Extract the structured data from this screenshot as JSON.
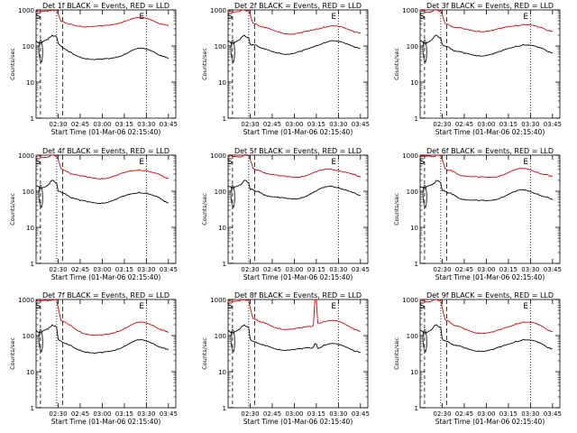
{
  "colors": {
    "events": "#000000",
    "lld": "#dd0000",
    "background": "#ffffff",
    "axis": "#000000"
  },
  "shared": {
    "ylabel": "Counts/sec",
    "xlabel": "Start Time (01-Mar-06 02:15:40)",
    "x_ticks": [
      "02:30",
      "02:45",
      "03:00",
      "03:15",
      "03:30",
      "03:45"
    ],
    "y_ticks": [
      "1",
      "10",
      "100",
      "1000"
    ],
    "marker_s": "S",
    "marker_e": "E"
  },
  "chart_data": [
    {
      "type": "line",
      "title": "Det 1f BLACK = Events, RED = LLD",
      "yscale": "log",
      "ylim": [
        1,
        1000
      ],
      "grid": false,
      "series": [
        {
          "color": "red",
          "x": [
            0,
            3,
            8,
            11,
            14,
            15,
            17,
            18,
            20,
            22,
            25,
            30,
            35,
            40,
            45,
            50,
            55,
            60,
            65,
            70,
            75,
            80,
            85,
            88,
            90
          ],
          "y": [
            1000,
            900,
            900,
            1000,
            950,
            800,
            480,
            480,
            430,
            400,
            380,
            360,
            350,
            350,
            350,
            370,
            420,
            500,
            570,
            600,
            570,
            500,
            420,
            380,
            360
          ]
        },
        {
          "color": "black",
          "x": [
            0,
            3,
            8,
            11,
            14,
            15,
            17,
            18,
            20,
            22,
            25,
            30,
            35,
            40,
            45,
            50,
            55,
            60,
            65,
            70,
            75,
            80,
            85,
            88,
            90
          ],
          "y": [
            140,
            120,
            150,
            200,
            180,
            120,
            100,
            90,
            80,
            70,
            60,
            50,
            45,
            42,
            42,
            44,
            50,
            60,
            75,
            85,
            80,
            70,
            55,
            48,
            45
          ]
        }
      ]
    },
    {
      "type": "line",
      "title": "Det 2f BLACK = Events, RED = LLD",
      "yscale": "log",
      "ylim": [
        1,
        1000
      ],
      "grid": false,
      "series": [
        {
          "color": "red",
          "x": [
            0,
            3,
            8,
            11,
            14,
            15,
            17,
            18,
            20,
            22,
            25,
            30,
            35,
            40,
            45,
            50,
            55,
            60,
            65,
            70,
            75,
            80,
            85,
            88,
            90
          ],
          "y": [
            1000,
            900,
            900,
            1000,
            950,
            750,
            430,
            400,
            380,
            350,
            320,
            280,
            250,
            220,
            210,
            230,
            260,
            300,
            340,
            360,
            340,
            300,
            260,
            240,
            230
          ]
        },
        {
          "color": "black",
          "x": [
            0,
            3,
            8,
            11,
            14,
            15,
            17,
            18,
            20,
            22,
            25,
            30,
            35,
            40,
            45,
            50,
            55,
            60,
            65,
            70,
            75,
            80,
            85,
            88,
            90
          ],
          "y": [
            140,
            120,
            150,
            200,
            170,
            110,
            110,
            105,
            100,
            90,
            80,
            70,
            65,
            60,
            62,
            70,
            85,
            105,
            125,
            140,
            130,
            115,
            100,
            90,
            85
          ]
        }
      ]
    },
    {
      "type": "line",
      "title": "Det 3f BLACK = Events, RED = LLD",
      "yscale": "log",
      "ylim": [
        1,
        1000
      ],
      "grid": false,
      "series": [
        {
          "color": "red",
          "x": [
            0,
            3,
            8,
            11,
            14,
            15,
            17,
            18,
            20,
            22,
            25,
            30,
            35,
            40,
            45,
            50,
            55,
            60,
            65,
            70,
            75,
            80,
            85,
            88,
            90
          ],
          "y": [
            1000,
            900,
            900,
            1000,
            950,
            750,
            420,
            400,
            380,
            350,
            320,
            290,
            270,
            260,
            260,
            270,
            300,
            340,
            380,
            400,
            380,
            330,
            290,
            270,
            260
          ]
        },
        {
          "color": "black",
          "x": [
            0,
            3,
            8,
            11,
            14,
            15,
            17,
            18,
            20,
            22,
            25,
            30,
            35,
            40,
            45,
            50,
            55,
            60,
            65,
            70,
            75,
            80,
            85,
            88,
            90
          ],
          "y": [
            140,
            120,
            150,
            200,
            170,
            110,
            100,
            95,
            90,
            80,
            70,
            62,
            58,
            55,
            56,
            60,
            70,
            85,
            100,
            110,
            105,
            90,
            78,
            70,
            65
          ]
        }
      ]
    },
    {
      "type": "line",
      "title": "Det 4f BLACK = Events, RED = LLD",
      "yscale": "log",
      "ylim": [
        1,
        1000
      ],
      "grid": false,
      "series": [
        {
          "color": "red",
          "x": [
            0,
            3,
            8,
            11,
            14,
            15,
            17,
            18,
            20,
            22,
            25,
            30,
            35,
            40,
            45,
            50,
            55,
            60,
            65,
            70,
            75,
            80,
            85,
            88,
            90
          ],
          "y": [
            1000,
            900,
            900,
            1000,
            950,
            750,
            420,
            400,
            370,
            340,
            300,
            260,
            240,
            230,
            230,
            240,
            270,
            320,
            370,
            400,
            380,
            320,
            270,
            240,
            230
          ]
        },
        {
          "color": "black",
          "x": [
            0,
            3,
            8,
            11,
            14,
            15,
            17,
            18,
            20,
            22,
            25,
            30,
            35,
            40,
            45,
            50,
            55,
            60,
            65,
            70,
            75,
            80,
            85,
            88,
            90
          ],
          "y": [
            140,
            120,
            150,
            200,
            170,
            100,
            95,
            90,
            85,
            75,
            65,
            55,
            50,
            48,
            48,
            52,
            60,
            72,
            85,
            95,
            90,
            75,
            60,
            52,
            48
          ]
        }
      ]
    },
    {
      "type": "line",
      "title": "Det 5f BLACK = Events, RED = LLD",
      "yscale": "log",
      "ylim": [
        1,
        1000
      ],
      "grid": false,
      "series": [
        {
          "color": "red",
          "x": [
            0,
            3,
            8,
            11,
            14,
            15,
            17,
            18,
            20,
            22,
            25,
            30,
            35,
            40,
            45,
            50,
            55,
            60,
            65,
            70,
            75,
            80,
            85,
            88,
            90
          ],
          "y": [
            1000,
            900,
            900,
            1000,
            950,
            750,
            430,
            410,
            390,
            360,
            330,
            290,
            260,
            250,
            250,
            260,
            290,
            340,
            390,
            410,
            390,
            340,
            290,
            260,
            250
          ]
        },
        {
          "color": "black",
          "x": [
            0,
            3,
            8,
            11,
            14,
            15,
            17,
            18,
            20,
            22,
            25,
            30,
            35,
            40,
            45,
            50,
            55,
            60,
            65,
            70,
            75,
            80,
            85,
            88,
            90
          ],
          "y": [
            140,
            120,
            150,
            200,
            170,
            110,
            110,
            105,
            100,
            90,
            80,
            70,
            65,
            62,
            62,
            68,
            80,
            100,
            125,
            140,
            130,
            110,
            90,
            80,
            75
          ]
        }
      ]
    },
    {
      "type": "line",
      "title": "Det 6f BLACK = Events, RED = LLD",
      "yscale": "log",
      "ylim": [
        1,
        1000
      ],
      "grid": false,
      "series": [
        {
          "color": "red",
          "x": [
            0,
            3,
            8,
            11,
            14,
            15,
            17,
            18,
            20,
            22,
            25,
            30,
            35,
            40,
            45,
            50,
            55,
            60,
            65,
            70,
            75,
            80,
            85,
            88,
            90
          ],
          "y": [
            1000,
            900,
            900,
            1000,
            950,
            750,
            420,
            400,
            380,
            350,
            310,
            270,
            250,
            240,
            240,
            250,
            280,
            330,
            390,
            420,
            400,
            340,
            290,
            260,
            250
          ]
        },
        {
          "color": "black",
          "x": [
            0,
            3,
            8,
            11,
            14,
            15,
            17,
            18,
            20,
            22,
            25,
            30,
            35,
            40,
            45,
            50,
            55,
            60,
            65,
            70,
            75,
            80,
            85,
            88,
            90
          ],
          "y": [
            140,
            120,
            150,
            200,
            170,
            105,
            100,
            95,
            90,
            80,
            70,
            60,
            56,
            54,
            54,
            58,
            68,
            82,
            98,
            108,
            100,
            85,
            70,
            62,
            58
          ]
        }
      ]
    },
    {
      "type": "line",
      "title": "Det 7f BLACK = Events, RED = LLD",
      "yscale": "log",
      "ylim": [
        1,
        1000
      ],
      "grid": false,
      "series": [
        {
          "color": "red",
          "x": [
            0,
            3,
            8,
            11,
            14,
            15,
            17,
            18,
            20,
            22,
            25,
            30,
            35,
            40,
            45,
            50,
            55,
            60,
            65,
            70,
            75,
            80,
            85,
            88,
            90
          ],
          "y": [
            1000,
            900,
            900,
            1000,
            950,
            600,
            260,
            250,
            230,
            200,
            170,
            130,
            110,
            100,
            100,
            110,
            130,
            160,
            200,
            230,
            220,
            190,
            150,
            130,
            120
          ]
        },
        {
          "color": "black",
          "x": [
            0,
            3,
            8,
            11,
            14,
            15,
            17,
            18,
            20,
            22,
            25,
            30,
            35,
            40,
            45,
            50,
            55,
            60,
            65,
            70,
            75,
            80,
            85,
            88,
            90
          ],
          "y": [
            140,
            120,
            150,
            200,
            170,
            80,
            70,
            65,
            60,
            55,
            48,
            40,
            35,
            32,
            33,
            36,
            42,
            52,
            65,
            75,
            70,
            60,
            48,
            42,
            40
          ]
        }
      ]
    },
    {
      "type": "line",
      "title": "Det 8f BLACK = Events, RED = LLD",
      "yscale": "log",
      "ylim": [
        1,
        1000
      ],
      "grid": false,
      "series": [
        {
          "color": "red",
          "x": [
            0,
            3,
            8,
            11,
            14,
            15,
            17,
            18,
            20,
            22,
            25,
            30,
            35,
            40,
            45,
            50,
            55,
            58,
            59,
            60,
            61,
            65,
            70,
            75,
            80,
            85,
            88,
            90
          ],
          "y": [
            1000,
            900,
            900,
            1000,
            950,
            600,
            300,
            280,
            260,
            240,
            220,
            180,
            160,
            150,
            150,
            160,
            180,
            190,
            1000,
            1000,
            220,
            250,
            260,
            240,
            200,
            160,
            140,
            130
          ]
        },
        {
          "color": "black",
          "x": [
            0,
            3,
            8,
            11,
            14,
            15,
            17,
            18,
            20,
            22,
            25,
            30,
            35,
            40,
            45,
            50,
            55,
            58,
            59,
            60,
            61,
            65,
            70,
            75,
            80,
            85,
            88,
            90
          ],
          "y": [
            140,
            120,
            150,
            200,
            170,
            80,
            70,
            66,
            62,
            58,
            52,
            46,
            42,
            40,
            40,
            42,
            46,
            48,
            60,
            58,
            44,
            55,
            60,
            55,
            48,
            40,
            36,
            34
          ]
        }
      ]
    },
    {
      "type": "line",
      "title": "Det 9f BLACK = Events, RED = LLD",
      "yscale": "log",
      "ylim": [
        1,
        1000
      ],
      "grid": false,
      "series": [
        {
          "color": "red",
          "x": [
            0,
            3,
            8,
            11,
            14,
            15,
            17,
            18,
            20,
            22,
            25,
            30,
            35,
            40,
            45,
            50,
            55,
            60,
            65,
            70,
            75,
            80,
            85,
            88,
            90
          ],
          "y": [
            1000,
            900,
            900,
            1000,
            950,
            600,
            280,
            260,
            240,
            210,
            180,
            150,
            130,
            120,
            118,
            125,
            145,
            175,
            215,
            240,
            230,
            200,
            160,
            140,
            130
          ]
        },
        {
          "color": "black",
          "x": [
            0,
            3,
            8,
            11,
            14,
            15,
            17,
            18,
            20,
            22,
            25,
            30,
            35,
            40,
            45,
            50,
            55,
            60,
            65,
            70,
            75,
            80,
            85,
            88,
            90
          ],
          "y": [
            140,
            120,
            150,
            200,
            170,
            80,
            72,
            68,
            64,
            58,
            52,
            45,
            40,
            38,
            38,
            41,
            48,
            58,
            70,
            78,
            74,
            64,
            52,
            46,
            43
          ]
        }
      ]
    }
  ]
}
